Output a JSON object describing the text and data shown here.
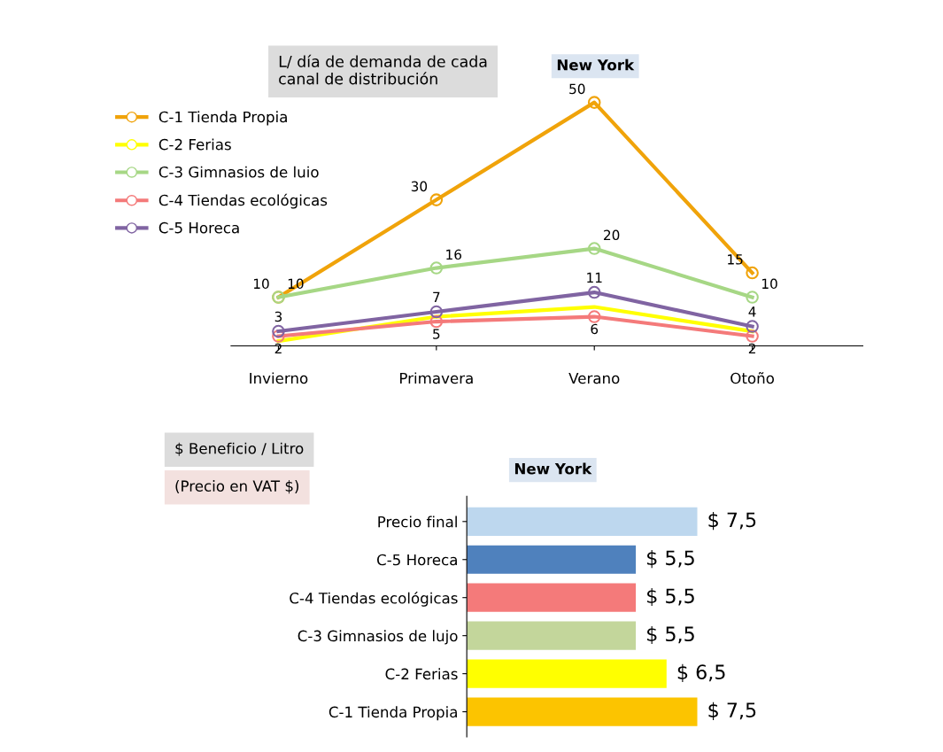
{
  "chart_data": [
    {
      "type": "line",
      "title": "L/ día de demanda de cada\ncanal de distribución",
      "subtitle": "New York",
      "categories": [
        "Invierno",
        "Primavera",
        "Verano",
        "Otoño"
      ],
      "marker": "circle",
      "legend": "top left",
      "grid": false,
      "series": [
        {
          "name": "C-1 Tienda Propia",
          "color": "#f0a30a",
          "values": [
            10,
            30,
            50,
            15
          ],
          "value_labels": [
            "10",
            "30",
            "50",
            "15"
          ]
        },
        {
          "name": "C-2 Ferias",
          "color": "#ffff00",
          "marker": "none",
          "values": [
            1,
            6,
            8,
            3
          ],
          "value_labels": [
            null,
            null,
            null,
            null
          ]
        },
        {
          "name": "C-3 Gimnasios de luio",
          "color": "#a6d785",
          "values": [
            10,
            16,
            20,
            10
          ],
          "value_labels": [
            "10",
            "16",
            "20",
            "10"
          ]
        },
        {
          "name": "C-4 Tiendas ecológicas",
          "color": "#f47a7a",
          "values": [
            2,
            5,
            6,
            2
          ],
          "value_labels": [
            "2",
            "5",
            "6",
            "2"
          ]
        },
        {
          "name": "C-5 Horeca",
          "color": "#8064a2",
          "values": [
            3,
            7,
            11,
            4
          ],
          "value_labels": [
            "3",
            "7",
            "11",
            "4"
          ]
        }
      ]
    },
    {
      "type": "bar",
      "orientation": "horizontal",
      "title": "$ Beneficio / Litro",
      "subtitle": "New York",
      "annotations": [
        "(Precio en VAT $)"
      ],
      "categories": [
        "Precio final",
        "C-5 Horeca",
        "C-4 Tiendas ecológicas",
        "C-3 Gimnasios de lujo",
        "C-2 Ferias",
        "C-1 Tienda Propia"
      ],
      "values": [
        7.5,
        5.5,
        5.5,
        5.5,
        6.5,
        7.5
      ],
      "value_labels": [
        "$ 7,5",
        "$ 5,5",
        "$ 5,5",
        "$ 5,5",
        "$ 6,5",
        "$ 7,5"
      ],
      "colors": [
        "#bdd7ee",
        "#4f81bd",
        "#f47a7a",
        "#c3d69b",
        "#ffff00",
        "#fcc400"
      ],
      "grid": false
    }
  ]
}
